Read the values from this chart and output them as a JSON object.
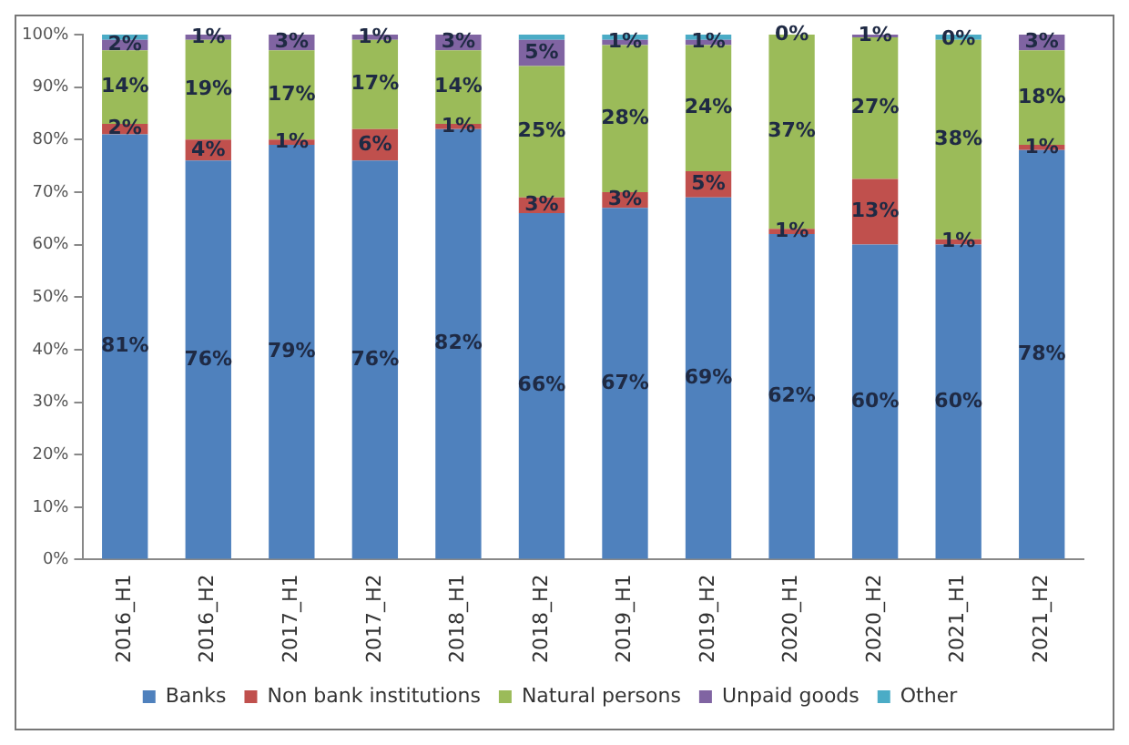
{
  "chart_data": {
    "type": "bar",
    "stacked": true,
    "categories": [
      "2016_H1",
      "2016_H2",
      "2017_H1",
      "2017_H2",
      "2018_H1",
      "2018_H2",
      "2019_H1",
      "2019_H2",
      "2020_H1",
      "2020_H2",
      "2021_H1",
      "2021_H2"
    ],
    "series": [
      {
        "name": "Banks",
        "color": "#4f81bd",
        "values": [
          81,
          76,
          79,
          76,
          82,
          66,
          67,
          69,
          62,
          60,
          60,
          78
        ],
        "value_labels": [
          "81%",
          "76%",
          "79%",
          "76%",
          "82%",
          "66%",
          "67%",
          "69%",
          "62%",
          "60%",
          "60%",
          "78%"
        ]
      },
      {
        "name": "Non bank institutions",
        "color": "#c0504d",
        "values": [
          2,
          4,
          1,
          6,
          1,
          3,
          3,
          5,
          1,
          12.5,
          1,
          1
        ],
        "value_labels": [
          "2%",
          "4%",
          "1%",
          "6%",
          "1%",
          "3%",
          "3%",
          "5%",
          "1%",
          "13%",
          "1%",
          "1%"
        ]
      },
      {
        "name": "Natural persons",
        "color": "#9bbb59",
        "values": [
          14,
          19,
          17,
          17,
          14,
          25,
          28,
          24,
          37,
          27,
          38,
          18
        ],
        "value_labels": [
          "14%",
          "19%",
          "17%",
          "17%",
          "14%",
          "25%",
          "28%",
          "24%",
          "37%",
          "27%",
          "38%",
          "18%"
        ]
      },
      {
        "name": "Unpaid goods",
        "color": "#8064a2",
        "values": [
          2,
          1,
          3,
          1,
          3,
          5,
          1,
          1,
          0,
          0.5,
          0,
          3
        ],
        "value_labels": [
          "2%",
          "1%",
          "3%",
          "1%",
          "3%",
          "5%",
          "1%",
          "1%",
          "0%",
          "1%",
          "0%",
          "3%"
        ]
      },
      {
        "name": "Other",
        "color": "#4bacc6",
        "values": [
          1,
          0,
          0,
          0,
          0,
          1,
          1,
          1,
          0,
          0,
          1,
          0
        ]
      }
    ],
    "ylim": [
      0,
      100
    ],
    "yticks": [
      {
        "value": 0,
        "label": "0%"
      },
      {
        "value": 10,
        "label": "10%"
      },
      {
        "value": 20,
        "label": "20%"
      },
      {
        "value": 30,
        "label": "30%"
      },
      {
        "value": 40,
        "label": "40%"
      },
      {
        "value": 50,
        "label": "50%"
      },
      {
        "value": 60,
        "label": "60%"
      },
      {
        "value": 70,
        "label": "70%"
      },
      {
        "value": 80,
        "label": "80%"
      },
      {
        "value": 90,
        "label": "90%"
      },
      {
        "value": 100,
        "label": "100%"
      }
    ],
    "grid": false,
    "legend": "bottom"
  }
}
